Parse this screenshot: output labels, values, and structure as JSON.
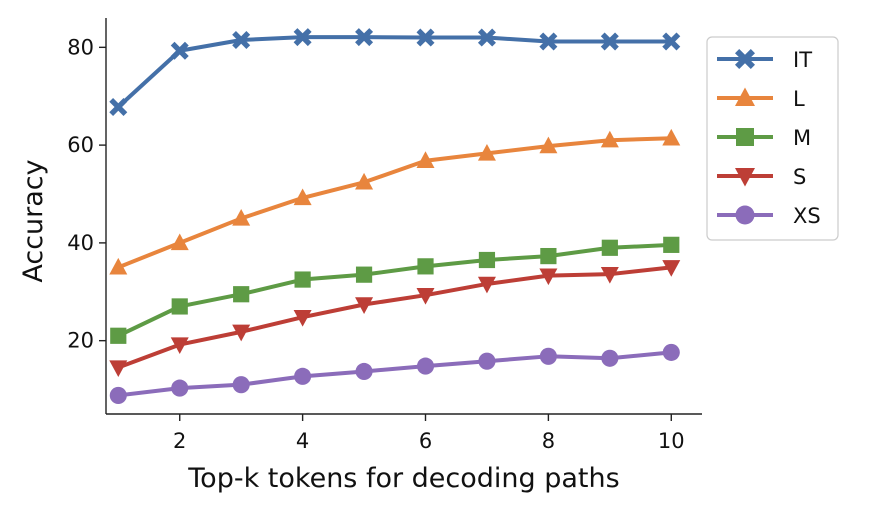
{
  "chart_data": {
    "type": "line",
    "xlabel": "Top-k tokens for decoding paths",
    "ylabel": "Accuracy",
    "x": [
      1,
      2,
      3,
      4,
      5,
      6,
      7,
      8,
      9,
      10
    ],
    "xlim": [
      0.8,
      10.5
    ],
    "ylim": [
      5,
      86
    ],
    "xticks": [
      2,
      4,
      6,
      8,
      10
    ],
    "yticks": [
      20,
      40,
      60,
      80
    ],
    "grid": false,
    "legend_position": "outside-top-right",
    "series": [
      {
        "name": "IT",
        "color": "#4470a8",
        "marker": "x-filled",
        "values": [
          67.8,
          79.3,
          81.5,
          82.1,
          82.1,
          82.0,
          82.0,
          81.2,
          81.2,
          81.2
        ]
      },
      {
        "name": "L",
        "color": "#e8853d",
        "marker": "triangle-up",
        "values": [
          35.0,
          40.0,
          45.0,
          49.2,
          52.4,
          56.8,
          58.3,
          59.8,
          61.0,
          61.4
        ]
      },
      {
        "name": "M",
        "color": "#5e9b45",
        "marker": "square",
        "values": [
          21.0,
          27.0,
          29.5,
          32.5,
          33.5,
          35.2,
          36.5,
          37.3,
          39.0,
          39.6
        ]
      },
      {
        "name": "S",
        "color": "#bd3e36",
        "marker": "triangle-down",
        "values": [
          14.5,
          19.2,
          21.8,
          24.8,
          27.4,
          29.3,
          31.6,
          33.3,
          33.6,
          35.0
        ]
      },
      {
        "name": "XS",
        "color": "#8b6cba",
        "marker": "circle",
        "values": [
          8.8,
          10.3,
          11.0,
          12.7,
          13.7,
          14.8,
          15.8,
          16.8,
          16.4,
          17.6
        ]
      }
    ]
  }
}
